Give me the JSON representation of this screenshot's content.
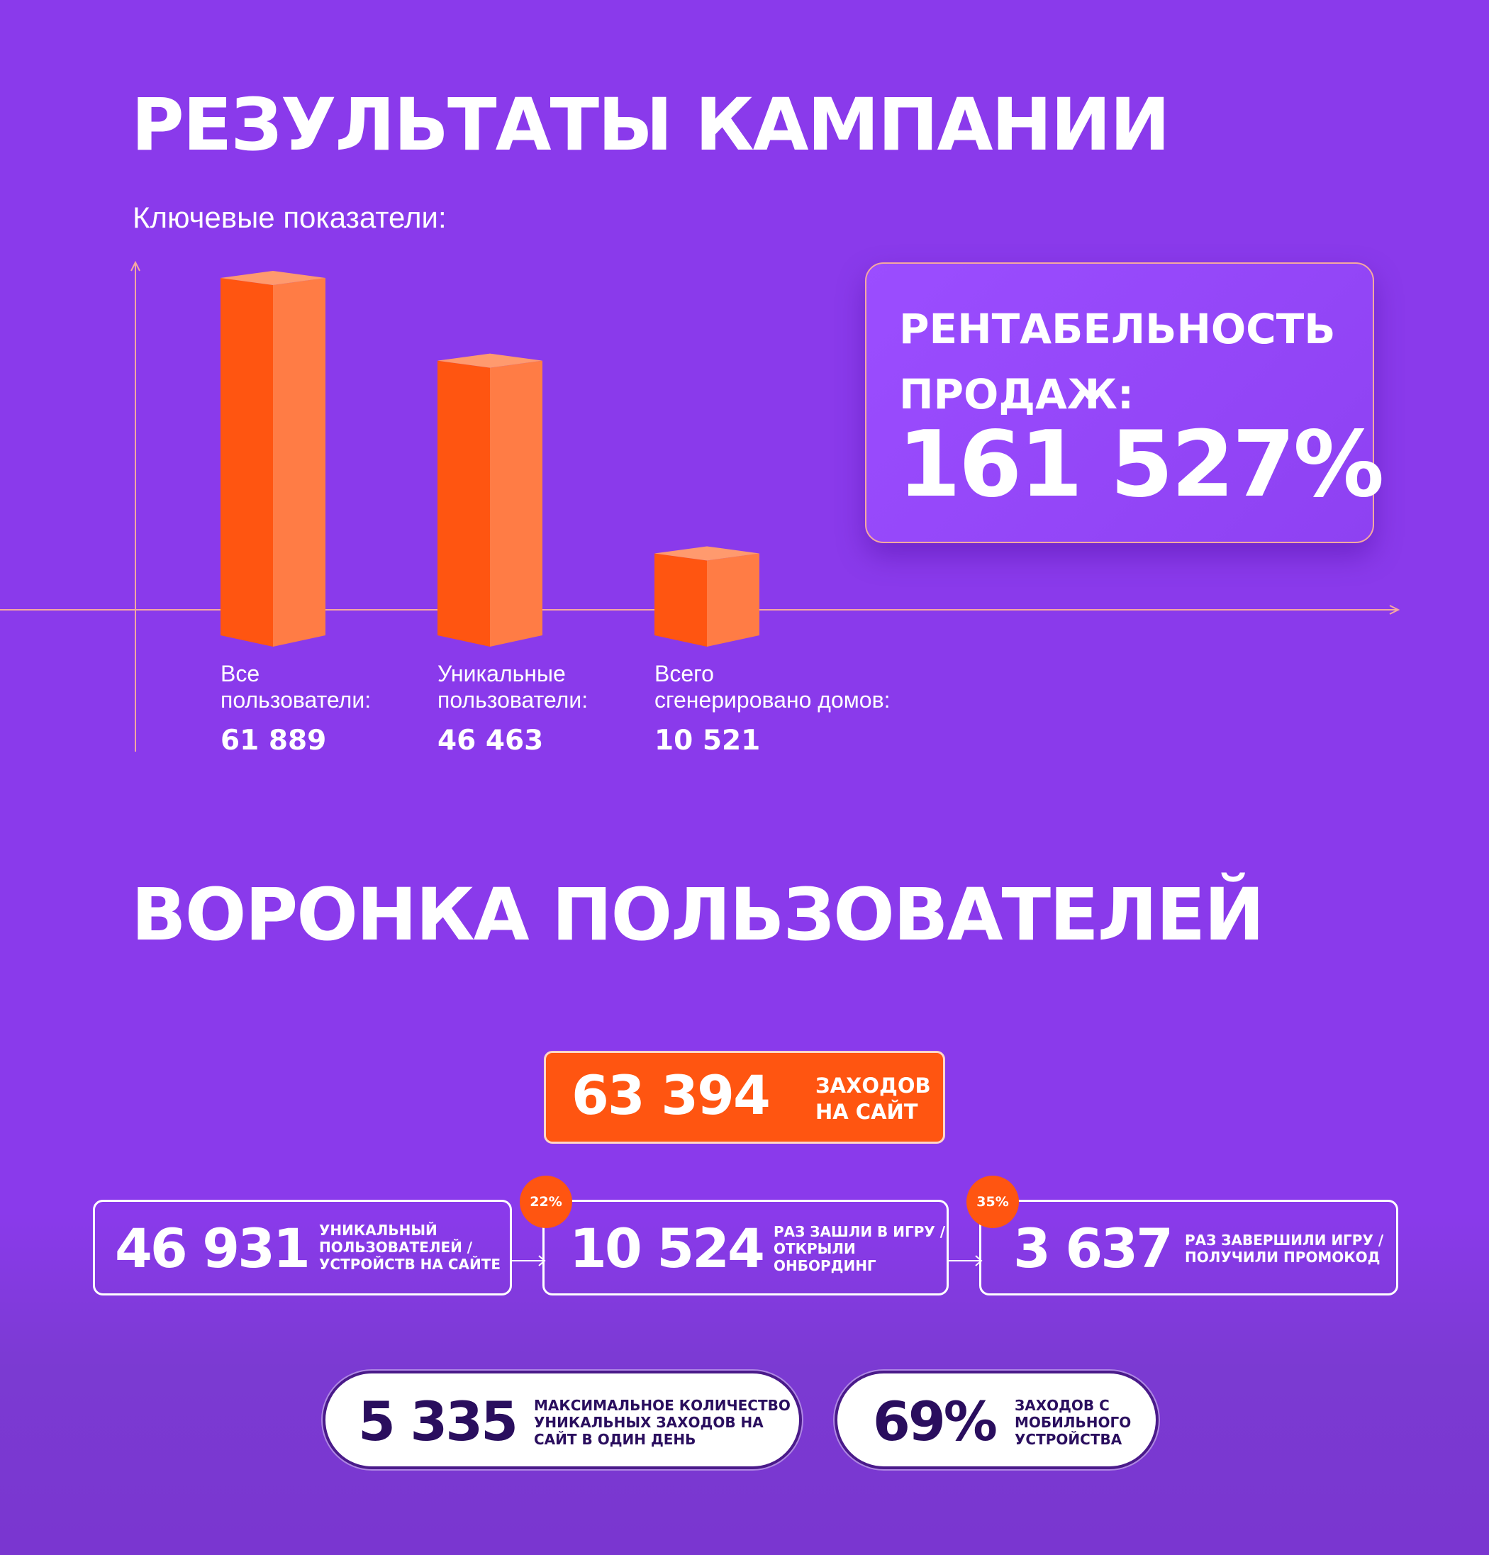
{
  "header": {
    "title": "РЕЗУЛЬТАТЫ КАМПАНИИ",
    "subtitle": "Ключевые показатели:"
  },
  "chart_data": {
    "type": "bar",
    "categories": [
      "Все пользователи:",
      "Уникальные пользователи:",
      "Всего сгенерировано домов:"
    ],
    "values": [
      61889,
      46463,
      10521
    ],
    "value_labels": [
      "61 889",
      "46 463",
      "10 521"
    ],
    "label_lines": [
      [
        "Все",
        "пользователи:"
      ],
      [
        "Уникальные",
        "пользователи:"
      ],
      [
        "Всего",
        "сгенерировано домов:"
      ]
    ],
    "colors": {
      "front": "#ff5511",
      "side": "#ff7c45",
      "top": "#ff9a6e",
      "axis": "#f5a9a0"
    }
  },
  "card": {
    "label": "РЕНТАБЕЛЬНОСТЬ\nПРОДАЖ:",
    "value": "161 527%"
  },
  "funnel": {
    "title": "ВОРОНКА ПОЛЬЗОВАТЕЛЕЙ",
    "visits": {
      "value": "63 394",
      "label": "ЗАХОДОВ\nНА САЙТ"
    },
    "steps": [
      {
        "value": "46 931",
        "label": "УНИКАЛЬНЫЙ\nПОЛЬЗОВАТЕЛЕЙ /\nУСТРОЙСТВ НА САЙТЕ"
      },
      {
        "value": "10 524",
        "label": "РАЗ ЗАШЛИ В ИГРУ /\nОТКРЫЛИ\nОНБОРДИНГ",
        "badge": "22%"
      },
      {
        "value": "3 637",
        "label": "РАЗ ЗАВЕРШИЛИ ИГРУ /\nПОЛУЧИЛИ ПРОМОКОД",
        "badge": "35%"
      }
    ],
    "extras": [
      {
        "value": "5 335",
        "label": "МАКСИМАЛЬНОЕ КОЛИЧЕСТВО\nУНИКАЛЬНЫХ ЗАХОДОВ НА\nСАЙТ В ОДИН ДЕНЬ"
      },
      {
        "value": "69%",
        "label": "ЗАХОДОВ С\nМОБИЛЬНОГО\nУСТРОЙСТВА"
      }
    ]
  },
  "colors": {
    "background": "#8a3aeb",
    "accent": "#ff5511",
    "card_border": "#f5a9a0",
    "dark_text": "#2a0e5e"
  }
}
